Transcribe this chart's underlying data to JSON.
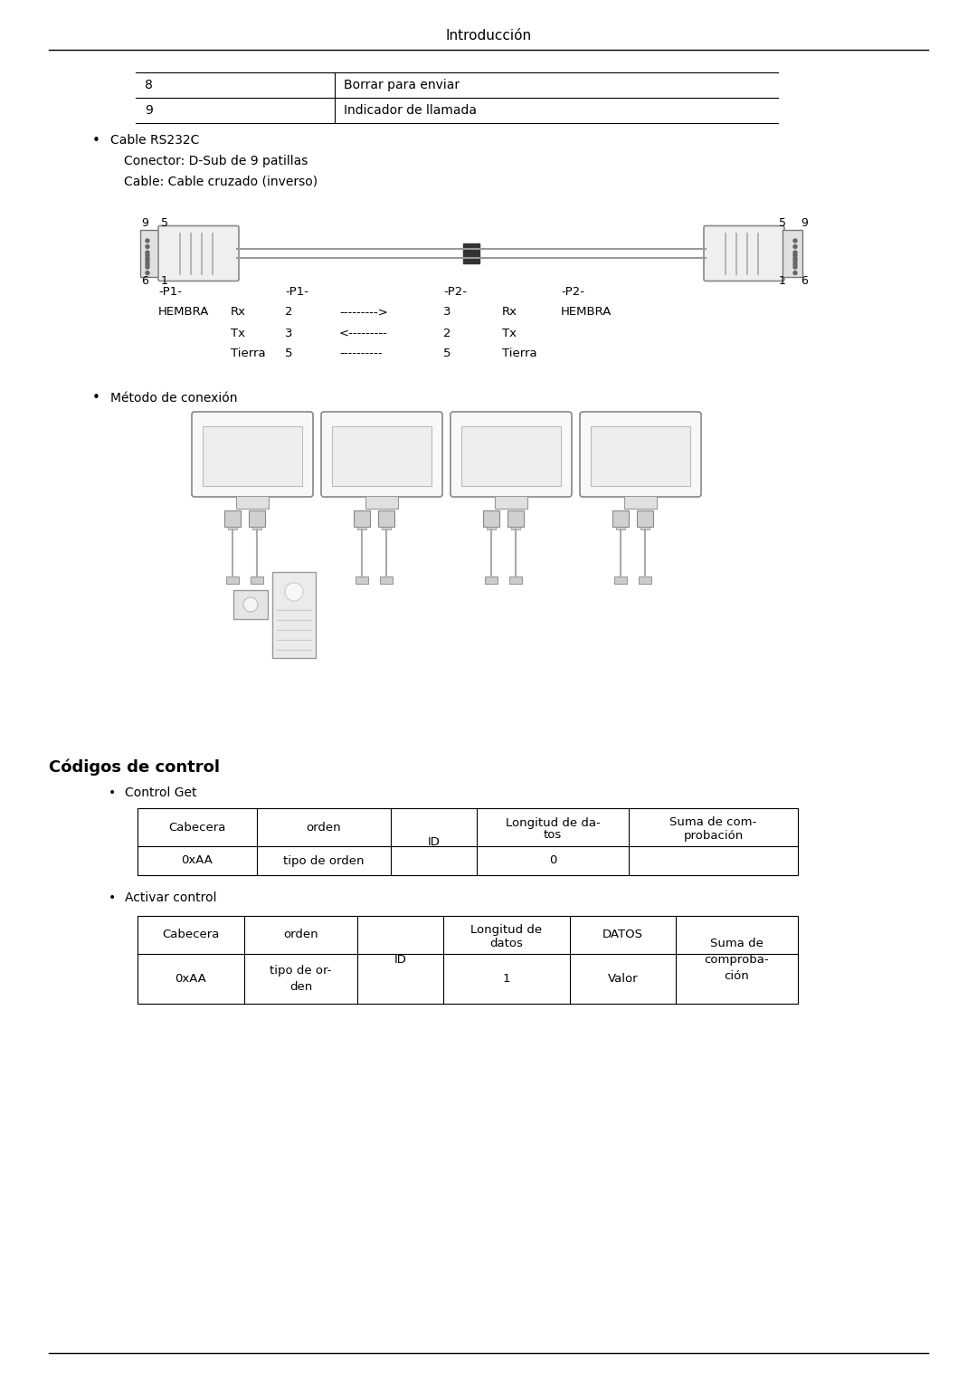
{
  "bg_color": "#ffffff",
  "page_title": "Introducción",
  "table1_rows": [
    [
      "8",
      "Borrar para enviar"
    ],
    [
      "9",
      "Indicador de llamada"
    ]
  ],
  "bullet1": "Cable RS232C",
  "sub1": "Conector: D-Sub de 9 patillas",
  "sub2": "Cable: Cable cruzado (inverso)",
  "pin_rows": [
    [
      "-P1-",
      "",
      "-P1-",
      "",
      "-P2-",
      "",
      "-P2-"
    ],
    [
      "HEMBRA",
      "Rx",
      "2",
      "--------->",
      "3",
      "Rx",
      "HEMBRA"
    ],
    [
      "",
      "Tx",
      "3",
      "<---------",
      "2",
      "Tx",
      ""
    ],
    [
      "",
      "Tierra",
      "5",
      "----------",
      "5",
      "Tierra",
      ""
    ]
  ],
  "bullet2": "Método de conexión",
  "section_title": "Códigos de control",
  "bullet3": "Control Get",
  "table2_headers": [
    "Cabecera",
    "orden",
    "ID",
    "Longitud de da-\ntos",
    "Suma de com-\nprobación"
  ],
  "table2_row": [
    "0xAA",
    "tipo de orden",
    "",
    "0",
    ""
  ],
  "bullet4": "Activar control",
  "table3_headers": [
    "Cabecera",
    "orden",
    "ID",
    "Longitud de\ndatos",
    "DATOS",
    "Suma de\ncomproba-\nción"
  ],
  "table3_row": [
    "0xAA",
    "tipo de or-\nden",
    "",
    "1",
    "Valor",
    ""
  ]
}
